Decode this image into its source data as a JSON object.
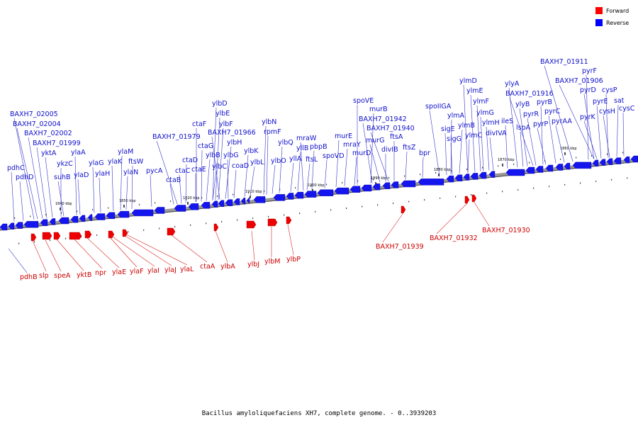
{
  "legend": [
    {
      "label": "Forward",
      "color": "#ff0000"
    },
    {
      "label": "Reverse",
      "color": "#0000ff"
    }
  ],
  "caption": "Bacillus amyloliquefaciens XH7, complete genome. - 0..3939203",
  "ticks": [
    "1840 kbp",
    "1850 kbp",
    "1820 kbp",
    "1910 kbp",
    "1900 kbp",
    "1890 kbp",
    "1880 kbp",
    "1870 kbp",
    "1860 kbp"
  ],
  "reverse_genes": [
    "pdhC",
    "pdhD",
    "BAXH7_02005",
    "BAXH7_02004",
    "BAXH7_02002",
    "BAXH7_01999",
    "yktA",
    "ykzC",
    "suhB",
    "ylaA",
    "ylaD",
    "ylaG",
    "ylaH",
    "ylaK",
    "ylaM",
    "ylaN",
    "ftsW",
    "pycA",
    "ctaB",
    "BAXH7_01979",
    "ctaC",
    "ctaD",
    "ctaE",
    "ctaF",
    "ctaG",
    "ylbB",
    "ylbC",
    "ylbD",
    "ylbE",
    "ylbF",
    "BAXH7_01966",
    "ylbH",
    "ylbG",
    "coaD",
    "ylbK",
    "ylbL",
    "ylbN",
    "rpmF",
    "ylbO",
    "ylbQ",
    "yllA",
    "yllB",
    "mraW",
    "ftsL",
    "pbpB",
    "spoVD",
    "murE",
    "mraY",
    "murD",
    "spoVE",
    "murB",
    "BAXH7_01942",
    "murG",
    "BAXH7_01940",
    "divIB",
    "ftsA",
    "ftsZ",
    "bpr",
    "spoIIGA",
    "sigE",
    "sigG",
    "ylmA",
    "ylmB",
    "ylmC",
    "ylmD",
    "ylmE",
    "ylmF",
    "ylmG",
    "ylmH",
    "divIVA",
    "ileS",
    "lspA",
    "ylyA",
    "ylyB",
    "BAXH7_01916",
    "pyrR",
    "pyrB",
    "pyrP",
    "pyrC",
    "pyrAA",
    "BAXH7_01911",
    "pyrF",
    "BAXH7_01906",
    "pyrD",
    "pyrE",
    "pyrK",
    "cysP",
    "cysH",
    "sat",
    "cysC"
  ],
  "forward_genes": [
    "pdhB",
    "slp",
    "speA",
    "yktB",
    "npr",
    "ylaE",
    "ylaF",
    "ylaI",
    "ylaJ",
    "ylaL",
    "ctaA",
    "ylbA",
    "ylbJ",
    "ylbM",
    "ylbP",
    "BAXH7_01939",
    "BAXH7_01932",
    "BAXH7_01930"
  ]
}
